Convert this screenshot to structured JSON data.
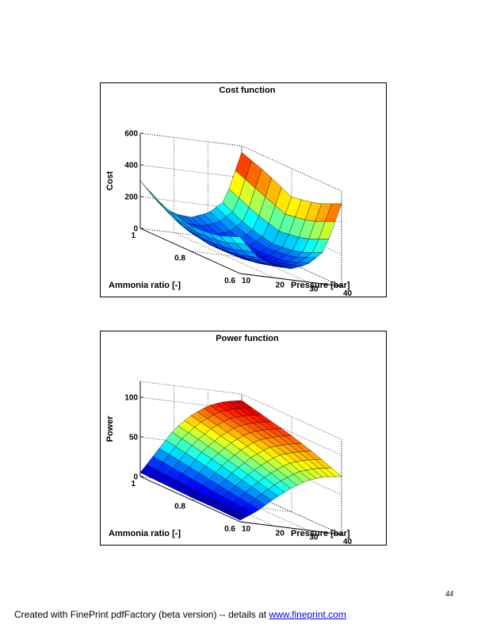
{
  "chart_data": [
    {
      "type": "surface",
      "title": "Cost function",
      "xlabel": "Pressure [bar]",
      "ylabel": "Ammonia ratio [-]",
      "zlabel": "Cost",
      "xlim": [
        10,
        40
      ],
      "ylim": [
        0.6,
        1.0
      ],
      "zlim": [
        0,
        600
      ],
      "x_ticks": [
        "10",
        "20",
        "30",
        "40"
      ],
      "y_ticks": [
        "0.6",
        "0.8",
        "1"
      ],
      "z_ticks": [
        "0",
        "200",
        "400",
        "600"
      ],
      "grid": true,
      "colormap": "jet",
      "pressure_samples": [
        10,
        15,
        20,
        25,
        30,
        35,
        40
      ],
      "ratio_samples": [
        1.0,
        0.9,
        0.8,
        0.7,
        0.6
      ],
      "values": [
        [
          300,
          180,
          120,
          110,
          150,
          240,
          560
        ],
        [
          200,
          90,
          50,
          45,
          70,
          160,
          500
        ],
        [
          160,
          60,
          25,
          20,
          40,
          120,
          420
        ],
        [
          170,
          70,
          30,
          25,
          50,
          140,
          450
        ],
        [
          230,
          120,
          80,
          70,
          110,
          210,
          520
        ]
      ]
    },
    {
      "type": "surface",
      "title": "Power function",
      "xlabel": "Pressure [bar]",
      "ylabel": "Ammonia ratio [-]",
      "zlabel": "Power",
      "xlim": [
        10,
        40
      ],
      "ylim": [
        0.6,
        1.0
      ],
      "zlim": [
        0,
        120
      ],
      "x_ticks": [
        "10",
        "20",
        "30",
        "40"
      ],
      "y_ticks": [
        "0.6",
        "0.8",
        "1"
      ],
      "z_ticks": [
        "0",
        "50",
        "100"
      ],
      "grid": true,
      "colormap": "jet",
      "pressure_samples": [
        10,
        15,
        20,
        25,
        30,
        35,
        40
      ],
      "ratio_samples": [
        1.0,
        0.9,
        0.8,
        0.7,
        0.6
      ],
      "values": [
        [
          5,
          35,
          65,
          85,
          100,
          108,
          112
        ],
        [
          4,
          30,
          58,
          78,
          93,
          100,
          104
        ],
        [
          3,
          25,
          50,
          70,
          85,
          92,
          96
        ],
        [
          3,
          20,
          42,
          60,
          75,
          82,
          86
        ],
        [
          2,
          16,
          34,
          50,
          63,
          70,
          73
        ]
      ]
    }
  ],
  "page_number": "44",
  "footer": {
    "text": "Created with FinePrint pdfFactory (beta version) -- details at ",
    "link": "www.fineprint.com"
  }
}
